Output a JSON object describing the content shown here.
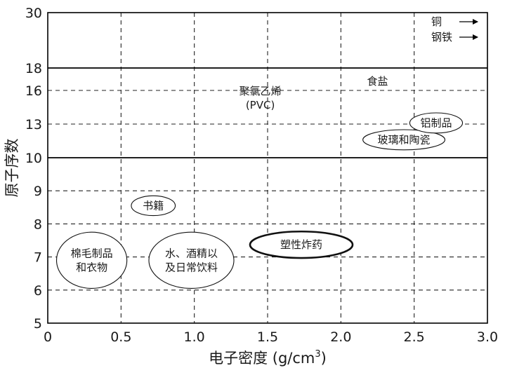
{
  "chart_data": {
    "type": "scatter",
    "xlabel": "电子密度 (g/cm",
    "xlabel_sup": "3",
    "xlabel_close": ")",
    "ylabel": "原子序数",
    "xlim": [
      0,
      3.0
    ],
    "x_ticks": [
      0,
      0.5,
      1.0,
      1.5,
      2.0,
      2.5,
      3.0
    ],
    "x_tick_labels": [
      "0",
      "0.5",
      "1.0",
      "1.5",
      "2.0",
      "2.5",
      "3.0"
    ],
    "y_ticks": [
      5,
      6,
      7,
      8,
      9,
      10,
      13,
      16,
      18,
      30
    ],
    "y_tick_labels": [
      "5",
      "6",
      "7",
      "8",
      "9",
      "10",
      "13",
      "16",
      "18",
      "30"
    ],
    "y_scale": "piecewise: 5–10 uniform, 10–18 compressed, 18–30 compressed",
    "grid": true,
    "solid_reference_lines_y": [
      10,
      18
    ],
    "regions": [
      {
        "label_lines": [
          "棉毛制品",
          "和衣物"
        ],
        "x": 0.3,
        "y": 6.9,
        "rx": 0.24,
        "ry": 0.85,
        "shape": "ellipse",
        "bold": false
      },
      {
        "label_lines": [
          "水、酒精以",
          "及日常饮料"
        ],
        "x": 0.98,
        "y": 6.9,
        "rx": 0.29,
        "ry": 0.85,
        "shape": "ellipse",
        "bold": false
      },
      {
        "label_lines": [
          "书籍"
        ],
        "x": 0.72,
        "y": 8.55,
        "rx": 0.15,
        "ry": 0.3,
        "shape": "ellipse",
        "bold": false
      },
      {
        "label_lines": [
          "塑性炸药"
        ],
        "x": 1.73,
        "y": 7.37,
        "rx": 0.35,
        "ry": 0.4,
        "shape": "ellipse",
        "bold": true
      },
      {
        "label_lines": [
          "玻璃和陶瓷"
        ],
        "x": 2.43,
        "y": 11.6,
        "rx": 0.28,
        "ry": 0.9,
        "shape": "ellipse",
        "bold": false
      },
      {
        "label_lines": [
          "铝制品"
        ],
        "x": 2.65,
        "y": 13.1,
        "rx": 0.18,
        "ry": 0.9,
        "shape": "ellipse",
        "bold": false
      },
      {
        "label_lines": [
          "聚氯乙烯",
          "(PVC)"
        ],
        "x": 1.45,
        "y": 15.3,
        "shape": "text"
      },
      {
        "label_lines": [
          "食盐"
        ],
        "x": 2.25,
        "y": 16.8,
        "shape": "text"
      }
    ],
    "offscale_items": [
      {
        "label": "铜",
        "direction": "right"
      },
      {
        "label": "钢铁",
        "direction": "right"
      }
    ]
  }
}
